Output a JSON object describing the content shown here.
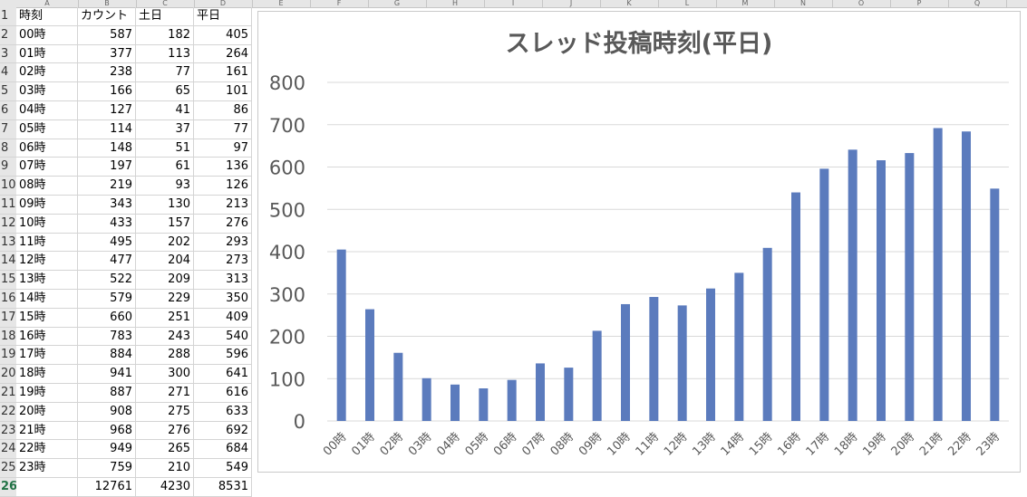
{
  "sheet": {
    "column_letters": [
      "A",
      "B",
      "C",
      "D",
      "E",
      "F",
      "G",
      "H",
      "I",
      "J",
      "K",
      "L",
      "M",
      "N",
      "O",
      "P",
      "Q"
    ],
    "header": {
      "row_num": "1",
      "a": "時刻",
      "b": "カウント",
      "c": "土日",
      "d": "平日"
    },
    "rows": [
      {
        "row_num": "2",
        "a": "00時",
        "b": "587",
        "c": "182",
        "d": "405"
      },
      {
        "row_num": "3",
        "a": "01時",
        "b": "377",
        "c": "113",
        "d": "264"
      },
      {
        "row_num": "4",
        "a": "02時",
        "b": "238",
        "c": "77",
        "d": "161"
      },
      {
        "row_num": "5",
        "a": "03時",
        "b": "166",
        "c": "65",
        "d": "101"
      },
      {
        "row_num": "6",
        "a": "04時",
        "b": "127",
        "c": "41",
        "d": "86"
      },
      {
        "row_num": "7",
        "a": "05時",
        "b": "114",
        "c": "37",
        "d": "77"
      },
      {
        "row_num": "8",
        "a": "06時",
        "b": "148",
        "c": "51",
        "d": "97"
      },
      {
        "row_num": "9",
        "a": "07時",
        "b": "197",
        "c": "61",
        "d": "136"
      },
      {
        "row_num": "10",
        "a": "08時",
        "b": "219",
        "c": "93",
        "d": "126"
      },
      {
        "row_num": "11",
        "a": "09時",
        "b": "343",
        "c": "130",
        "d": "213"
      },
      {
        "row_num": "12",
        "a": "10時",
        "b": "433",
        "c": "157",
        "d": "276"
      },
      {
        "row_num": "13",
        "a": "11時",
        "b": "495",
        "c": "202",
        "d": "293"
      },
      {
        "row_num": "14",
        "a": "12時",
        "b": "477",
        "c": "204",
        "d": "273"
      },
      {
        "row_num": "15",
        "a": "13時",
        "b": "522",
        "c": "209",
        "d": "313"
      },
      {
        "row_num": "16",
        "a": "14時",
        "b": "579",
        "c": "229",
        "d": "350"
      },
      {
        "row_num": "17",
        "a": "15時",
        "b": "660",
        "c": "251",
        "d": "409"
      },
      {
        "row_num": "18",
        "a": "16時",
        "b": "783",
        "c": "243",
        "d": "540"
      },
      {
        "row_num": "19",
        "a": "17時",
        "b": "884",
        "c": "288",
        "d": "596"
      },
      {
        "row_num": "20",
        "a": "18時",
        "b": "941",
        "c": "300",
        "d": "641"
      },
      {
        "row_num": "21",
        "a": "19時",
        "b": "887",
        "c": "271",
        "d": "616"
      },
      {
        "row_num": "22",
        "a": "20時",
        "b": "908",
        "c": "275",
        "d": "633"
      },
      {
        "row_num": "23",
        "a": "21時",
        "b": "968",
        "c": "276",
        "d": "692"
      },
      {
        "row_num": "24",
        "a": "22時",
        "b": "949",
        "c": "265",
        "d": "684"
      },
      {
        "row_num": "25",
        "a": "23時",
        "b": "759",
        "c": "210",
        "d": "549"
      }
    ],
    "totals": {
      "row_num": "26",
      "a": "",
      "b": "12761",
      "c": "4230",
      "d": "8531"
    }
  },
  "chart_data": {
    "type": "bar",
    "title": "スレッド投稿時刻(平日)",
    "categories": [
      "00時",
      "01時",
      "02時",
      "03時",
      "04時",
      "05時",
      "06時",
      "07時",
      "08時",
      "09時",
      "10時",
      "11時",
      "12時",
      "13時",
      "14時",
      "15時",
      "16時",
      "17時",
      "18時",
      "19時",
      "20時",
      "21時",
      "22時",
      "23時"
    ],
    "values": [
      405,
      264,
      161,
      101,
      86,
      77,
      97,
      136,
      126,
      213,
      276,
      293,
      273,
      313,
      350,
      409,
      540,
      596,
      641,
      616,
      633,
      692,
      684,
      549
    ],
    "ylim": [
      0,
      800
    ],
    "yticks": [
      "0",
      "100",
      "200",
      "300",
      "400",
      "500",
      "600",
      "700",
      "800"
    ],
    "grid": true,
    "bar_color": "#5b7bbd",
    "grid_color": "#d9d9d9"
  }
}
